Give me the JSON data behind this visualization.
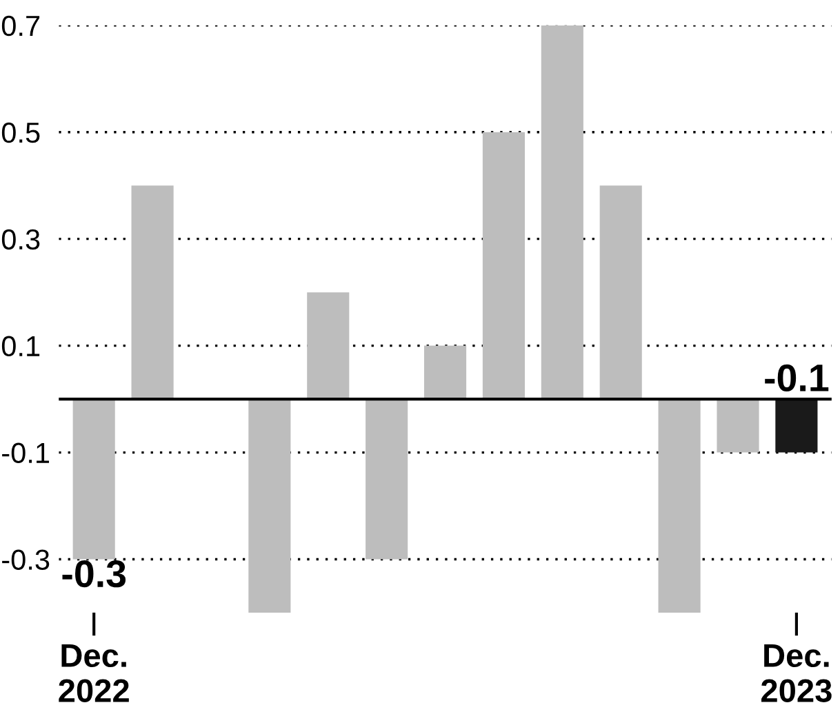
{
  "chart_data": {
    "type": "bar",
    "categories": [
      "Dec.\n2022",
      null,
      null,
      null,
      null,
      null,
      null,
      null,
      null,
      null,
      null,
      null,
      "Dec.\n2023"
    ],
    "values": [
      -0.3,
      0.4,
      0,
      -0.4,
      0.2,
      -0.3,
      0.1,
      0.5,
      0.7,
      0.4,
      -0.4,
      -0.1,
      -0.1
    ],
    "colors": [
      "#bdbdbd",
      "#bdbdbd",
      "#bdbdbd",
      "#bdbdbd",
      "#bdbdbd",
      "#bdbdbd",
      "#bdbdbd",
      "#bdbdbd",
      "#bdbdbd",
      "#bdbdbd",
      "#bdbdbd",
      "#bdbdbd",
      "#1a1a1a"
    ],
    "value_labels": [
      "-0.3",
      null,
      null,
      null,
      null,
      null,
      null,
      null,
      null,
      null,
      null,
      null,
      "-0.1"
    ],
    "ylim": [
      -0.4,
      0.7
    ],
    "yticks": [
      -0.3,
      -0.1,
      0.1,
      0.3,
      0.5,
      0.7
    ],
    "grid": "y",
    "ref_lines": [
      {
        "axis": "y",
        "value": 0,
        "color": "#000000",
        "line_style": "solid"
      }
    ]
  }
}
